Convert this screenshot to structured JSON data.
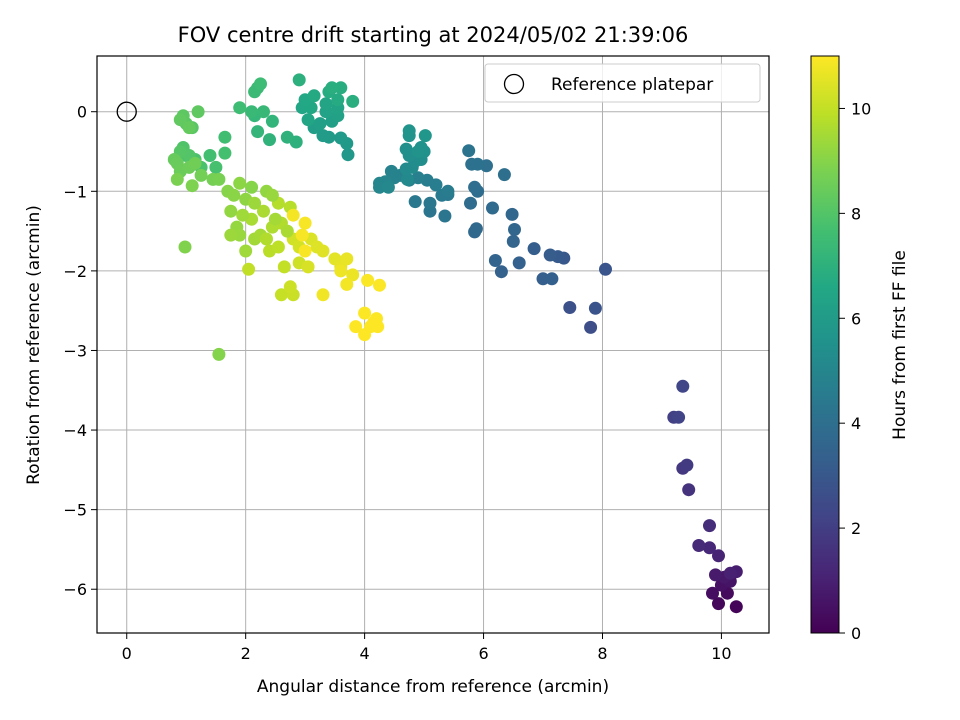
{
  "chart_data": {
    "type": "scatter",
    "title": "FOV centre drift starting at 2024/05/02 21:39:06",
    "xlabel": "Angular distance from reference (arcmin)",
    "ylabel": "Rotation from reference (arcmin)",
    "xlim": [
      -0.5,
      10.8
    ],
    "ylim": [
      -6.55,
      0.7
    ],
    "xticks": [
      0,
      2,
      4,
      6,
      8,
      10
    ],
    "yticks": [
      0,
      -1,
      -2,
      -3,
      -4,
      -5,
      -6
    ],
    "grid": true,
    "colormap": "viridis",
    "colorbar": {
      "label": "Hours from first FF file",
      "min": 0,
      "max": 11,
      "ticks": [
        0,
        2,
        4,
        6,
        8,
        10
      ]
    },
    "legend": {
      "position": "top-right",
      "entries": [
        "Reference platepar"
      ]
    },
    "reference_point": {
      "x": 0,
      "y": 0,
      "label": "Reference platepar"
    },
    "points": [
      [
        10.25,
        -6.22,
        0.1
      ],
      [
        9.95,
        -6.18,
        0.2
      ],
      [
        10.1,
        -6.05,
        0.3
      ],
      [
        9.85,
        -6.05,
        0.4
      ],
      [
        10.0,
        -5.95,
        0.5
      ],
      [
        10.15,
        -5.9,
        0.6
      ],
      [
        10.05,
        -5.85,
        0.7
      ],
      [
        9.9,
        -5.82,
        0.8
      ],
      [
        10.25,
        -5.78,
        0.9
      ],
      [
        10.15,
        -5.8,
        1.0
      ],
      [
        9.95,
        -5.58,
        1.1
      ],
      [
        9.8,
        -5.48,
        1.2
      ],
      [
        9.62,
        -5.45,
        1.3
      ],
      [
        9.8,
        -5.2,
        1.4
      ],
      [
        9.45,
        -4.75,
        1.6
      ],
      [
        9.35,
        -4.48,
        1.8
      ],
      [
        9.42,
        -4.44,
        1.9
      ],
      [
        9.2,
        -3.84,
        2.1
      ],
      [
        9.28,
        -3.84,
        2.2
      ],
      [
        9.35,
        -3.45,
        2.3
      ],
      [
        7.8,
        -2.71,
        2.6
      ],
      [
        7.45,
        -2.46,
        2.7
      ],
      [
        7.88,
        -2.47,
        2.8
      ],
      [
        8.05,
        -1.98,
        2.9
      ],
      [
        7.35,
        -1.84,
        3.0
      ],
      [
        7.25,
        -1.82,
        3.1
      ],
      [
        7.12,
        -1.8,
        3.2
      ],
      [
        6.85,
        -1.72,
        3.25
      ],
      [
        7.0,
        -2.1,
        3.3
      ],
      [
        7.15,
        -2.1,
        3.35
      ],
      [
        6.6,
        -1.9,
        3.4
      ],
      [
        6.3,
        -2.01,
        3.45
      ],
      [
        6.2,
        -1.87,
        3.5
      ],
      [
        6.5,
        -1.63,
        3.55
      ],
      [
        6.52,
        -1.48,
        3.6
      ],
      [
        6.48,
        -1.29,
        3.65
      ],
      [
        5.85,
        -1.51,
        3.7
      ],
      [
        5.88,
        -1.47,
        3.75
      ],
      [
        6.15,
        -1.21,
        3.8
      ],
      [
        5.78,
        -1.15,
        3.85
      ],
      [
        5.9,
        -1.0,
        3.9
      ],
      [
        5.85,
        -0.95,
        3.95
      ],
      [
        6.35,
        -0.79,
        4.0
      ],
      [
        6.05,
        -0.68,
        4.05
      ],
      [
        5.8,
        -0.66,
        4.1
      ],
      [
        5.9,
        -0.66,
        4.15
      ],
      [
        5.75,
        -0.49,
        4.2
      ],
      [
        5.35,
        -1.31,
        4.25
      ],
      [
        5.1,
        -1.25,
        4.3
      ],
      [
        5.1,
        -1.15,
        4.35
      ],
      [
        4.85,
        -1.13,
        4.4
      ],
      [
        5.4,
        -1.04,
        4.45
      ],
      [
        5.3,
        -1.05,
        4.5
      ],
      [
        5.4,
        -1.0,
        4.55
      ],
      [
        5.2,
        -0.92,
        4.6
      ],
      [
        5.05,
        -0.86,
        4.65
      ],
      [
        4.9,
        -0.83,
        4.7
      ],
      [
        4.75,
        -0.86,
        4.75
      ],
      [
        4.6,
        -0.8,
        4.8
      ],
      [
        4.45,
        -0.75,
        4.85
      ],
      [
        4.5,
        -0.83,
        4.9
      ],
      [
        4.35,
        -0.88,
        4.95
      ],
      [
        4.25,
        -0.9,
        5.0
      ],
      [
        4.25,
        -0.95,
        5.05
      ],
      [
        4.4,
        -0.95,
        5.1
      ],
      [
        4.72,
        -0.85,
        5.15
      ],
      [
        4.7,
        -0.72,
        5.2
      ],
      [
        4.8,
        -0.7,
        5.25
      ],
      [
        4.85,
        -0.62,
        5.3
      ],
      [
        4.95,
        -0.6,
        5.35
      ],
      [
        4.75,
        -0.55,
        5.4
      ],
      [
        4.7,
        -0.47,
        5.45
      ],
      [
        5.0,
        -0.5,
        5.5
      ],
      [
        4.95,
        -0.45,
        5.55
      ],
      [
        4.9,
        -0.5,
        5.6
      ],
      [
        4.75,
        -0.3,
        5.65
      ],
      [
        4.75,
        -0.24,
        5.7
      ],
      [
        5.02,
        -0.3,
        5.75
      ],
      [
        3.72,
        -0.54,
        5.85
      ],
      [
        3.7,
        -0.4,
        5.9
      ],
      [
        3.6,
        -0.33,
        5.95
      ],
      [
        3.4,
        -0.32,
        6.0
      ],
      [
        3.3,
        -0.3,
        6.05
      ],
      [
        3.15,
        -0.2,
        6.1
      ],
      [
        3.25,
        -0.15,
        6.15
      ],
      [
        3.45,
        -0.12,
        6.2
      ],
      [
        3.55,
        -0.05,
        6.25
      ],
      [
        3.35,
        0.0,
        6.3
      ],
      [
        3.55,
        0.05,
        6.35
      ],
      [
        3.35,
        0.1,
        6.4
      ],
      [
        3.05,
        -0.1,
        6.45
      ],
      [
        2.95,
        0.05,
        6.5
      ],
      [
        3.1,
        0.05,
        6.55
      ],
      [
        3.0,
        0.15,
        6.6
      ],
      [
        3.15,
        0.2,
        6.65
      ],
      [
        3.55,
        0.15,
        6.7
      ],
      [
        3.4,
        0.25,
        6.75
      ],
      [
        3.6,
        0.3,
        6.8
      ],
      [
        3.45,
        0.3,
        6.85
      ],
      [
        3.8,
        0.13,
        6.9
      ],
      [
        2.9,
        0.4,
        6.95
      ],
      [
        2.85,
        -0.38,
        7.0
      ],
      [
        2.7,
        -0.32,
        7.05
      ],
      [
        2.4,
        -0.35,
        7.1
      ],
      [
        2.45,
        -0.12,
        7.15
      ],
      [
        2.2,
        -0.25,
        7.2
      ],
      [
        2.15,
        -0.05,
        7.25
      ],
      [
        2.3,
        0.0,
        7.3
      ],
      [
        2.1,
        0.0,
        7.35
      ],
      [
        2.15,
        0.25,
        7.4
      ],
      [
        2.2,
        0.3,
        7.45
      ],
      [
        2.25,
        0.35,
        7.5
      ],
      [
        1.9,
        0.05,
        7.55
      ],
      [
        1.65,
        -0.32,
        7.6
      ],
      [
        1.4,
        -0.55,
        7.65
      ],
      [
        1.65,
        -0.52,
        7.7
      ],
      [
        1.5,
        -0.7,
        7.75
      ],
      [
        1.25,
        -0.7,
        7.8
      ],
      [
        1.15,
        -0.6,
        7.85
      ],
      [
        1.0,
        -0.55,
        7.9
      ],
      [
        0.95,
        -0.45,
        7.95
      ],
      [
        1.05,
        -0.55,
        8.0
      ],
      [
        0.9,
        -0.5,
        8.05
      ],
      [
        1.1,
        -0.2,
        8.1
      ],
      [
        1.0,
        -0.15,
        8.15
      ],
      [
        0.95,
        -0.05,
        8.2
      ],
      [
        1.2,
        0.0,
        8.25
      ],
      [
        0.9,
        -0.1,
        8.3
      ],
      [
        1.05,
        -0.2,
        8.35
      ],
      [
        0.8,
        -0.6,
        8.4
      ],
      [
        0.85,
        -0.65,
        8.45
      ],
      [
        0.9,
        -0.75,
        8.5
      ],
      [
        1.05,
        -0.7,
        8.55
      ],
      [
        1.15,
        -0.65,
        8.6
      ],
      [
        1.25,
        -0.8,
        8.65
      ],
      [
        1.45,
        -0.85,
        8.7
      ],
      [
        1.55,
        -0.85,
        8.75
      ],
      [
        0.85,
        -0.85,
        8.8
      ],
      [
        1.1,
        -0.93,
        8.85
      ],
      [
        0.98,
        -1.7,
        8.9
      ],
      [
        1.55,
        -3.05,
        8.95
      ],
      [
        1.7,
        -1.0,
        9.0
      ],
      [
        1.8,
        -1.05,
        9.05
      ],
      [
        1.9,
        -0.9,
        9.1
      ],
      [
        2.0,
        -1.1,
        9.15
      ],
      [
        1.75,
        -1.25,
        9.2
      ],
      [
        1.85,
        -1.45,
        9.25
      ],
      [
        1.9,
        -1.55,
        9.3
      ],
      [
        1.75,
        -1.55,
        9.35
      ],
      [
        2.0,
        -1.75,
        9.4
      ],
      [
        2.15,
        -1.6,
        9.45
      ],
      [
        2.25,
        -1.55,
        9.5
      ],
      [
        2.1,
        -1.35,
        9.55
      ],
      [
        2.3,
        -1.25,
        9.6
      ],
      [
        2.45,
        -1.45,
        9.65
      ],
      [
        2.6,
        -1.4,
        9.7
      ],
      [
        2.55,
        -1.15,
        9.75
      ],
      [
        2.75,
        -1.2,
        9.8
      ],
      [
        2.4,
        -1.75,
        9.85
      ],
      [
        2.55,
        -1.7,
        9.9
      ],
      [
        2.05,
        -1.98,
        9.95
      ],
      [
        2.65,
        -1.95,
        10.0
      ],
      [
        2.6,
        -2.3,
        10.05
      ],
      [
        2.8,
        -2.3,
        10.1
      ],
      [
        2.75,
        -2.2,
        10.15
      ],
      [
        2.9,
        -1.9,
        10.2
      ],
      [
        2.8,
        -1.6,
        10.25
      ],
      [
        2.9,
        -1.7,
        10.3
      ],
      [
        3.05,
        -1.95,
        10.35
      ],
      [
        3.1,
        -1.6,
        10.4
      ],
      [
        3.2,
        -1.7,
        10.45
      ],
      [
        3.3,
        -1.75,
        10.5
      ],
      [
        3.5,
        -1.85,
        10.55
      ],
      [
        3.6,
        -1.95,
        10.6
      ],
      [
        3.7,
        -1.85,
        10.65
      ],
      [
        3.8,
        -2.05,
        10.7
      ],
      [
        3.6,
        -2.0,
        10.75
      ],
      [
        3.3,
        -2.3,
        10.8
      ],
      [
        3.7,
        -2.17,
        10.82
      ],
      [
        2.8,
        -1.3,
        10.85
      ],
      [
        3.0,
        -1.4,
        10.88
      ],
      [
        2.95,
        -1.55,
        10.9
      ],
      [
        3.0,
        -1.75,
        10.92
      ],
      [
        4.05,
        -2.12,
        10.95
      ],
      [
        4.25,
        -2.18,
        10.97
      ],
      [
        4.0,
        -2.53,
        10.98
      ],
      [
        4.2,
        -2.6,
        10.99
      ],
      [
        3.85,
        -2.7,
        11.0
      ],
      [
        4.0,
        -2.8,
        11.0
      ],
      [
        4.1,
        -2.7,
        11.0
      ],
      [
        4.22,
        -2.7,
        11.0
      ],
      [
        4.15,
        -2.65,
        11.0
      ],
      [
        2.1,
        -0.95,
        9.0
      ],
      [
        2.35,
        -1.0,
        9.2
      ],
      [
        2.45,
        -1.05,
        9.3
      ],
      [
        2.15,
        -1.15,
        9.35
      ],
      [
        1.95,
        -1.3,
        9.4
      ],
      [
        2.5,
        -1.35,
        9.5
      ],
      [
        2.7,
        -1.5,
        9.6
      ],
      [
        2.35,
        -1.6,
        9.7
      ]
    ]
  }
}
